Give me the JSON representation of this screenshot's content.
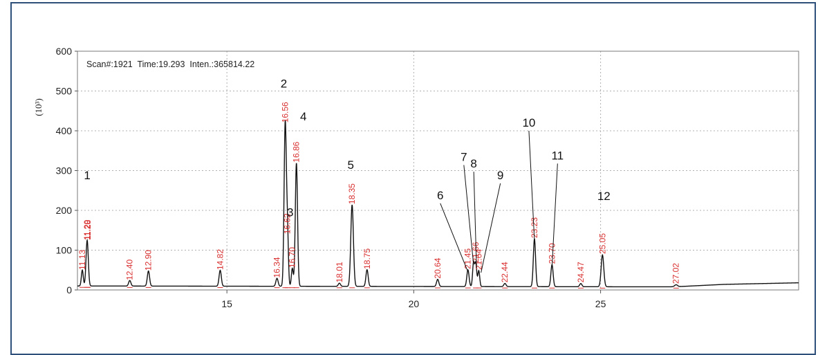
{
  "chart_data": {
    "type": "line",
    "header": "Scan#:1921  Time:19.293  Inten.:365814.22",
    "y_unit": "(10³)",
    "xlabel": "",
    "ylabel": "",
    "xlim": [
      11.0,
      30.3
    ],
    "ylim": [
      0,
      600
    ],
    "xticks": [
      15,
      20,
      25
    ],
    "yticks": [
      0,
      100,
      200,
      300,
      400,
      500,
      600
    ],
    "grid": true,
    "trace_color": "#111111",
    "label_color": "#d93030",
    "retention_labels": [
      {
        "text": "11.13",
        "t": 11.13,
        "h": 40
      },
      {
        "text": "11.20",
        "t": 11.26,
        "h": 115
      },
      {
        "text": "11.28",
        "t": 11.28,
        "h": 115
      },
      {
        "text": "12.40",
        "t": 12.4,
        "h": 14
      },
      {
        "text": "12.90",
        "t": 12.9,
        "h": 38
      },
      {
        "text": "14.82",
        "t": 14.82,
        "h": 40
      },
      {
        "text": "16.34",
        "t": 16.34,
        "h": 20
      },
      {
        "text": "16.56",
        "t": 16.56,
        "h": 410
      },
      {
        "text": "16.62",
        "t": 16.62,
        "h": 130
      },
      {
        "text": "16.70",
        "t": 16.75,
        "h": 45
      },
      {
        "text": "16.86",
        "t": 16.86,
        "h": 310
      },
      {
        "text": "18.01",
        "t": 18.01,
        "h": 8
      },
      {
        "text": "18.35",
        "t": 18.35,
        "h": 205
      },
      {
        "text": "18.75",
        "t": 18.75,
        "h": 42
      },
      {
        "text": "20.64",
        "t": 20.64,
        "h": 18
      },
      {
        "text": "21.45",
        "t": 21.45,
        "h": 42
      },
      {
        "text": "21.66",
        "t": 21.66,
        "h": 58
      },
      {
        "text": "21.64",
        "t": 21.74,
        "h": 40
      },
      {
        "text": "22.44",
        "t": 22.44,
        "h": 8
      },
      {
        "text": "23.23",
        "t": 23.23,
        "h": 120
      },
      {
        "text": "23.70",
        "t": 23.7,
        "h": 55
      },
      {
        "text": "24.47",
        "t": 24.47,
        "h": 8
      },
      {
        "text": "25.05",
        "t": 25.05,
        "h": 80
      },
      {
        "text": "27.02",
        "t": 27.02,
        "h": 5
      }
    ],
    "peak_numbers": [
      {
        "text": "1",
        "t": 11.26,
        "h": 115
      },
      {
        "text": "2",
        "t": 16.56,
        "h": 410
      },
      {
        "text": "3",
        "t": 16.62,
        "h": 130
      },
      {
        "text": "4",
        "t": 16.86,
        "h": 310
      },
      {
        "text": "5",
        "t": 18.35,
        "h": 205
      },
      {
        "text": "6",
        "t": 21.45,
        "h": 42
      },
      {
        "text": "7",
        "t": 21.6,
        "h": 60
      },
      {
        "text": "8",
        "t": 21.68,
        "h": 52
      },
      {
        "text": "9",
        "t": 21.8,
        "h": 40
      },
      {
        "text": "10",
        "t": 23.23,
        "h": 120
      },
      {
        "text": "11",
        "t": 23.7,
        "h": 55
      },
      {
        "text": "12",
        "t": 25.05,
        "h": 80
      }
    ],
    "peaks": [
      {
        "t": 11.13,
        "h": 40,
        "w": 0.025
      },
      {
        "t": 11.26,
        "h": 115,
        "w": 0.03
      },
      {
        "t": 12.4,
        "h": 14,
        "w": 0.03
      },
      {
        "t": 12.9,
        "h": 38,
        "w": 0.03
      },
      {
        "t": 14.82,
        "h": 40,
        "w": 0.03
      },
      {
        "t": 16.34,
        "h": 20,
        "w": 0.03
      },
      {
        "t": 16.56,
        "h": 410,
        "w": 0.03
      },
      {
        "t": 16.62,
        "h": 130,
        "w": 0.025
      },
      {
        "t": 16.75,
        "h": 45,
        "w": 0.025
      },
      {
        "t": 16.86,
        "h": 310,
        "w": 0.03
      },
      {
        "t": 18.01,
        "h": 8,
        "w": 0.03
      },
      {
        "t": 18.35,
        "h": 205,
        "w": 0.035
      },
      {
        "t": 18.75,
        "h": 42,
        "w": 0.03
      },
      {
        "t": 20.64,
        "h": 18,
        "w": 0.03
      },
      {
        "t": 21.45,
        "h": 42,
        "w": 0.03
      },
      {
        "t": 21.6,
        "h": 60,
        "w": 0.025
      },
      {
        "t": 21.66,
        "h": 58,
        "w": 0.025
      },
      {
        "t": 21.74,
        "h": 40,
        "w": 0.025
      },
      {
        "t": 22.44,
        "h": 8,
        "w": 0.03
      },
      {
        "t": 23.23,
        "h": 120,
        "w": 0.03
      },
      {
        "t": 23.7,
        "h": 55,
        "w": 0.03
      },
      {
        "t": 24.47,
        "h": 8,
        "w": 0.03
      },
      {
        "t": 25.05,
        "h": 80,
        "w": 0.035
      },
      {
        "t": 27.02,
        "h": 5,
        "w": 0.04
      }
    ],
    "baseline": [
      [
        11.0,
        10
      ],
      [
        25.5,
        8
      ],
      [
        27.0,
        8
      ],
      [
        28.3,
        14
      ],
      [
        30.3,
        18
      ]
    ]
  }
}
